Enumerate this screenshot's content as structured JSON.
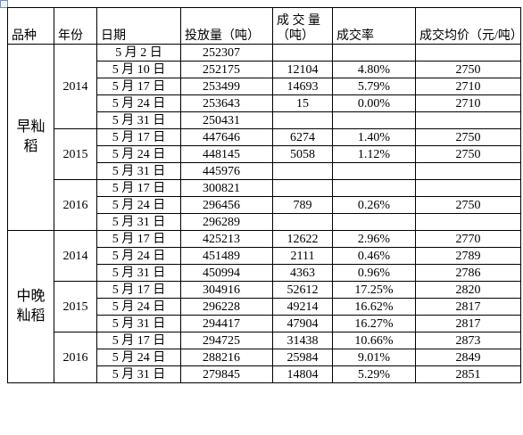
{
  "table": {
    "header": [
      "品种",
      "年份",
      "日期",
      "投放量（吨）",
      "成 交 量（吨）",
      "成交率",
      "成交均价（元/吨）"
    ],
    "groups": [
      {
        "variety": "早籼稻",
        "years": [
          {
            "year": "2014",
            "rows": [
              {
                "date": "5 月 2 日",
                "supply": 252307
              },
              {
                "date": "5 月 10 日",
                "supply": 252175,
                "volume": 12104,
                "rate": "4.80%",
                "price": 2750
              },
              {
                "date": "5 月 17 日",
                "supply": 253499,
                "volume": 14693,
                "rate": "5.79%",
                "price": 2710
              },
              {
                "date": "5 月 24 日",
                "supply": 253643,
                "volume": 15,
                "rate": "0.00%",
                "price": 2710
              },
              {
                "date": "5 月 31 日",
                "supply": 250431
              }
            ]
          },
          {
            "year": "2015",
            "rows": [
              {
                "date": "5 月 17 日",
                "supply": 447646,
                "volume": 6274,
                "rate": "1.40%",
                "price": 2750
              },
              {
                "date": "5 月 24 日",
                "supply": 448145,
                "volume": 5058,
                "rate": "1.12%",
                "price": 2750
              },
              {
                "date": "5 月 31 日",
                "supply": 445976
              }
            ]
          },
          {
            "year": "2016",
            "rows": [
              {
                "date": "5 月 17 日",
                "supply": 300821
              },
              {
                "date": "5 月 24 日",
                "supply": 296456,
                "volume": 789,
                "rate": "0.26%",
                "price": 2750
              },
              {
                "date": "5 月 31 日",
                "supply": 296289
              }
            ]
          }
        ]
      },
      {
        "variety": "中晚籼稻",
        "years": [
          {
            "year": "2014",
            "rows": [
              {
                "date": "5 月 17 日",
                "supply": 425213,
                "volume": 12622,
                "rate": "2.96%",
                "price": 2770
              },
              {
                "date": "5 月 24 日",
                "supply": 451489,
                "volume": 2111,
                "rate": "0.46%",
                "price": 2789
              },
              {
                "date": "5 月 31 日",
                "supply": 450994,
                "volume": 4363,
                "rate": "0.96%",
                "price": 2786
              }
            ]
          },
          {
            "year": "2015",
            "rows": [
              {
                "date": "5 月 17 日",
                "supply": 304916,
                "volume": 52612,
                "rate": "17.25%",
                "price": 2820
              },
              {
                "date": "5 月 24 日",
                "supply": 296228,
                "volume": 49214,
                "rate": "16.62%",
                "price": 2817
              },
              {
                "date": "5 月 31 日",
                "supply": 294417,
                "volume": 47904,
                "rate": "16.27%",
                "price": 2817
              }
            ]
          },
          {
            "year": "2016",
            "rows": [
              {
                "date": "5 月 17 日",
                "supply": 294725,
                "volume": 31438,
                "rate": "10.66%",
                "price": 2873
              },
              {
                "date": "5 月 24 日",
                "supply": 288216,
                "volume": 25984,
                "rate": "9.01%",
                "price": 2849
              },
              {
                "date": "5 月 31 日",
                "supply": 279845,
                "volume": 14804,
                "rate": "5.29%",
                "price": 2851
              }
            ]
          }
        ]
      }
    ]
  }
}
